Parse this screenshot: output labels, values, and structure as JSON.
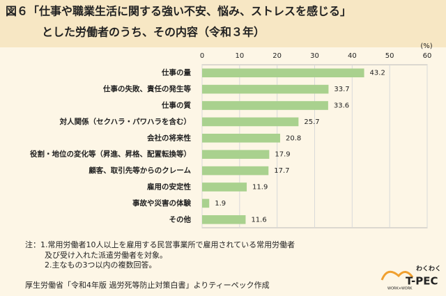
{
  "chart_data": {
    "type": "bar",
    "orientation": "horizontal",
    "title": [
      "図６「仕事や職業生活に関する強い不安、悩み、ストレスを感じる」",
      "とした労働者のうち、その内容（令和３年）"
    ],
    "unit_label": "(%)",
    "categories": [
      "仕事の量",
      "仕事の失敗、責任の発生等",
      "仕事の質",
      "対人関係（セクハラ・パワハラを含む）",
      "会社の将来性",
      "役割・地位の変化等（昇進、昇格、配置転換等）",
      "顧客、取引先等からのクレーム",
      "雇用の安定性",
      "事故や災害の体験",
      "その他"
    ],
    "values": [
      43.2,
      33.7,
      33.6,
      25.7,
      20.8,
      17.9,
      17.7,
      11.9,
      1.9,
      11.6
    ],
    "color": "#a9d18e",
    "xlim": [
      0,
      60
    ],
    "xticks": [
      0,
      10,
      20,
      30,
      40,
      50,
      60
    ],
    "grid": true,
    "notes": [
      "注：1.常用労働者10人以上を雇用する民営事業所で雇用されている常用労働者",
      "及び受け入れた派遣労働者を対象。",
      "2.主なもの3つ以内の複数回答。"
    ],
    "source": "厚生労働省「令和4年版 過労死等防止対策白書」よりティーペック作成",
    "logo": [
      "わくわく",
      "T-PEC",
      "WORK×WORK"
    ]
  }
}
